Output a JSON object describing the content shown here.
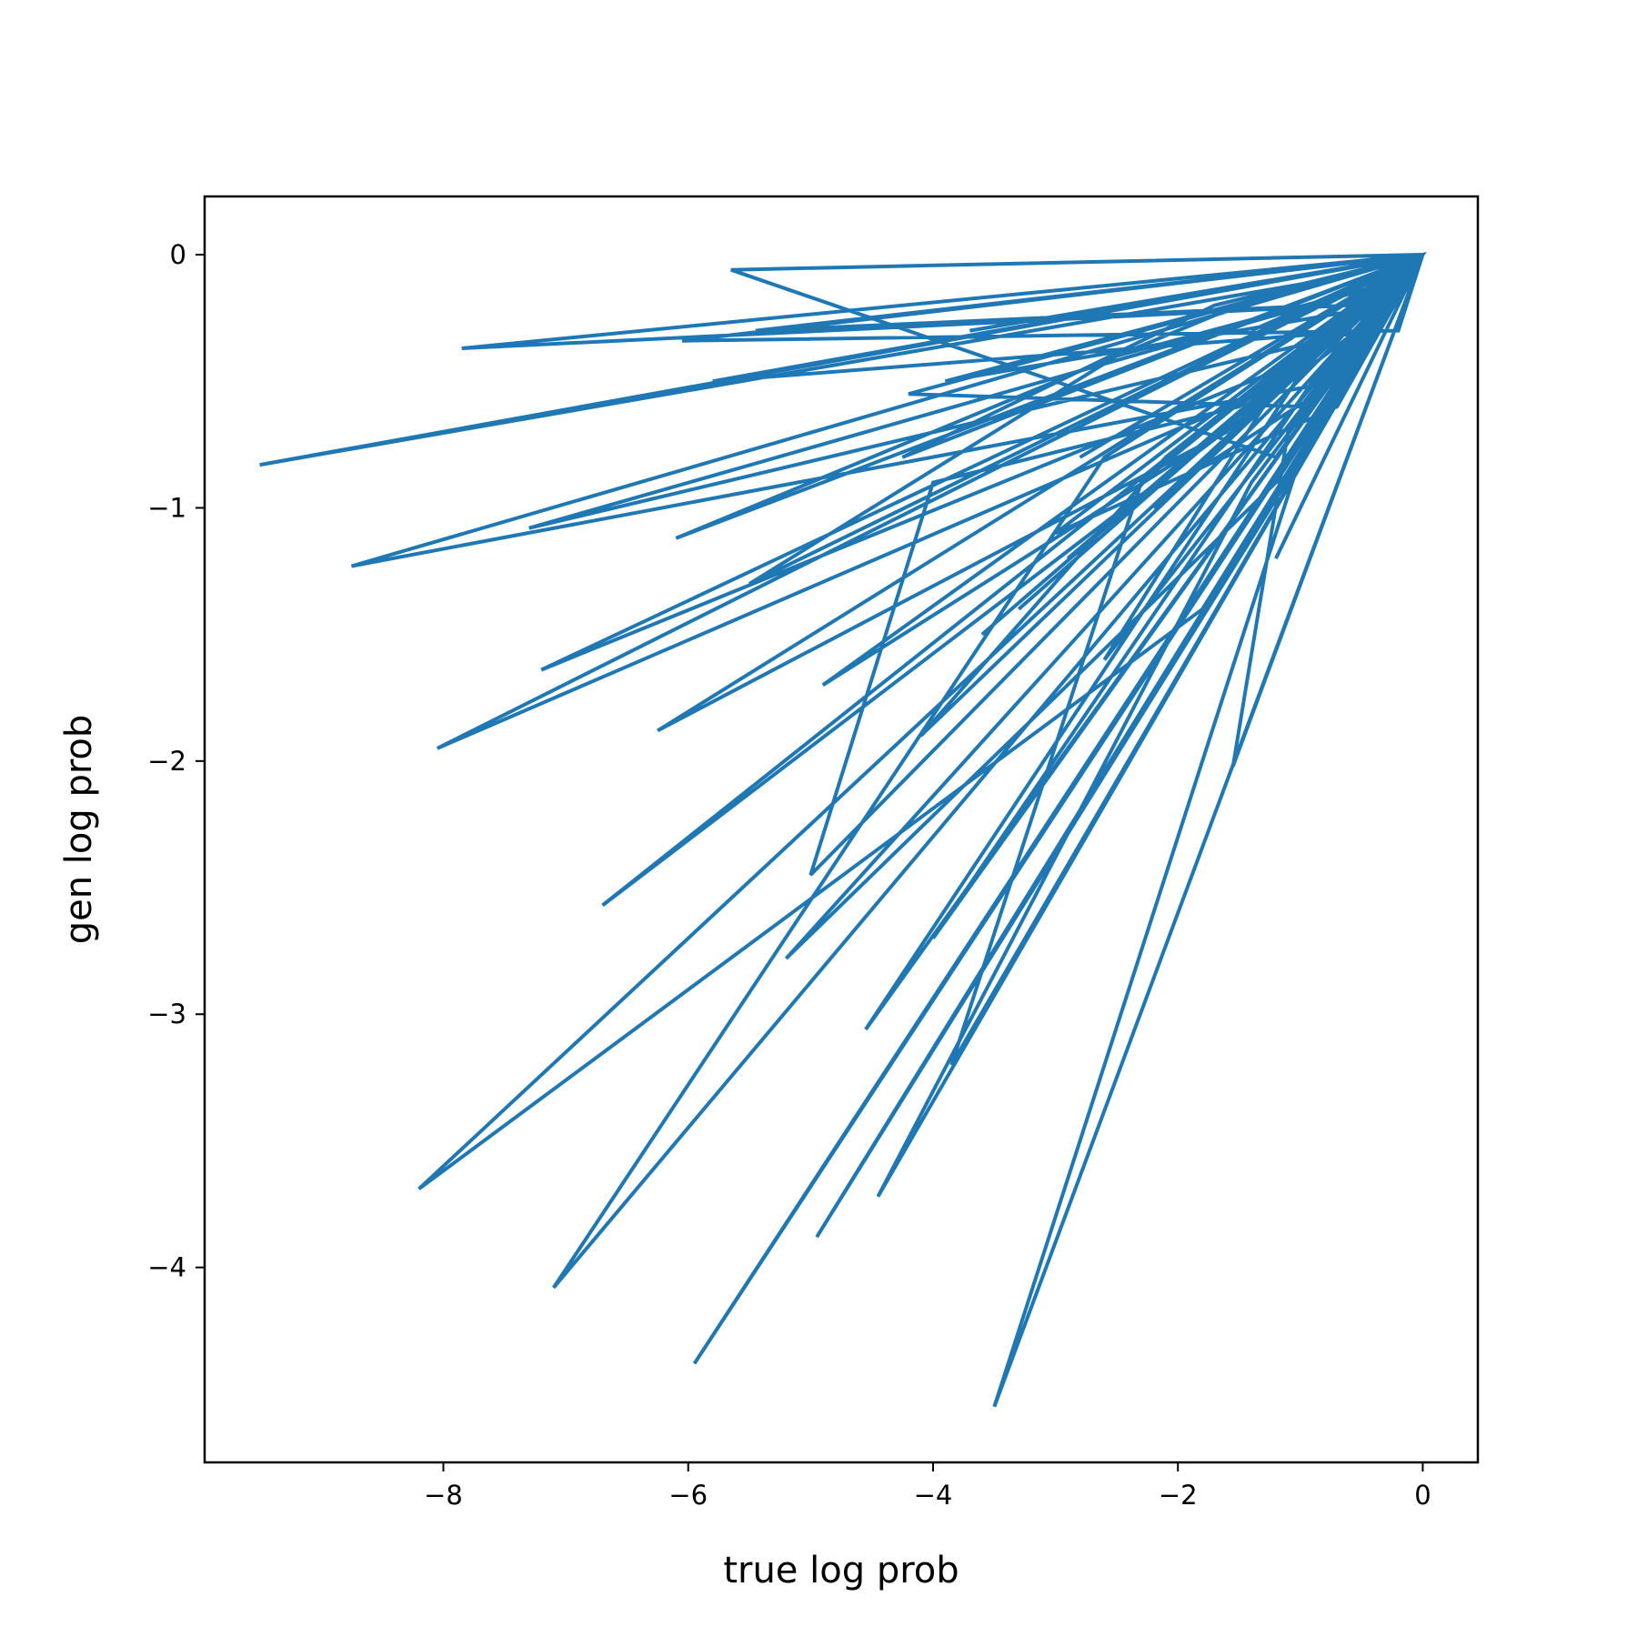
{
  "chart_data": {
    "type": "line",
    "title": "",
    "xlabel": "true log prob",
    "ylabel": "gen log prob",
    "xlim": [
      -9.95,
      0.45
    ],
    "ylim": [
      -4.77,
      0.23
    ],
    "xticks": [
      -8,
      -6,
      -4,
      -2,
      0
    ],
    "yticks": [
      0,
      -1,
      -2,
      -3,
      -4
    ],
    "xtick_labels": [
      "−8",
      "−6",
      "−4",
      "−2",
      "0"
    ],
    "ytick_labels": [
      "0",
      "−1",
      "−2",
      "−3",
      "−4"
    ],
    "grid": false,
    "legend": "none",
    "series": [
      {
        "color": "#1f77b4",
        "x": [
          0,
          -1.4,
          0,
          -2.8,
          0,
          -9.5,
          -0.8,
          0,
          -5.65,
          -1.2,
          0,
          -3.6,
          0,
          -6.1,
          -1.5,
          0,
          -7.85,
          -0.6,
          0,
          -4.2,
          -1.0,
          0,
          -8.75,
          -0.7,
          -2.0,
          0,
          -5.5,
          -2.5,
          -0.2,
          -7.3,
          -0.5,
          0,
          -4.9,
          -1.3,
          0,
          -2.2,
          0,
          -7.2,
          -0.9,
          0,
          -8.05,
          -1.1,
          0,
          -3.9,
          -0.3,
          0,
          -6.25,
          -1.6,
          0,
          -2.9,
          0,
          -5.0,
          -4.0,
          -1.5,
          0,
          -6.7,
          -0.4,
          0,
          -8.2,
          -1.8,
          0,
          -7.1,
          -2.6,
          0,
          -5.95,
          -0.1,
          0,
          -5.2,
          -1.2,
          0,
          -4.55,
          -0.9,
          0,
          -3.85,
          -2.3,
          0,
          -1.55,
          -1.1,
          0,
          -4.95,
          -0.6,
          0,
          -3.0,
          -0.7,
          0,
          -6.05,
          -0.2,
          0,
          -4.45,
          -1.4,
          0,
          -3.3,
          0,
          -5.8,
          -0.5,
          0,
          -4.0,
          -0.9,
          0,
          -3.5,
          -1.0,
          0,
          -5.45,
          -0.8,
          0,
          -4.25,
          -1.7,
          0,
          -3.7,
          0,
          -2.6,
          -1.3,
          0,
          -4.1,
          -2.1,
          0,
          -1.2,
          0,
          -0.9,
          -0.3,
          0
        ],
        "y": [
          0,
          -0.3,
          0,
          -0.8,
          0,
          -0.83,
          -0.1,
          0,
          -0.06,
          -0.8,
          0,
          -1.5,
          0,
          -1.12,
          -0.2,
          0,
          -0.37,
          -0.2,
          0,
          -0.55,
          -0.6,
          0,
          -1.23,
          -0.5,
          -0.9,
          0,
          -1.3,
          -0.4,
          -0.1,
          -1.08,
          -0.3,
          0,
          -1.7,
          -0.6,
          0,
          -1.0,
          0,
          -1.64,
          -0.4,
          0,
          -1.95,
          -0.5,
          0,
          -0.5,
          -0.2,
          0,
          -1.88,
          -0.7,
          0,
          -1.2,
          0,
          -2.45,
          -0.9,
          -0.6,
          0,
          -2.57,
          -0.25,
          0,
          -3.69,
          -1.4,
          0,
          -4.08,
          -0.8,
          0,
          -4.38,
          -0.05,
          0,
          -2.78,
          -0.9,
          0,
          -3.06,
          -0.4,
          0,
          -3.2,
          -0.9,
          0,
          -2.02,
          -0.7,
          0,
          -3.88,
          -0.5,
          0,
          -1.1,
          -0.6,
          0,
          -0.34,
          -0.3,
          0,
          -3.72,
          -0.9,
          0,
          -1.4,
          0,
          -0.5,
          -0.3,
          0,
          -2.7,
          -0.5,
          0,
          -4.55,
          -0.8,
          0,
          -0.3,
          -0.2,
          0,
          -0.8,
          -0.2,
          0,
          -0.3,
          0,
          -1.6,
          -0.6,
          0,
          -1.9,
          -0.8,
          0,
          -1.2,
          0,
          -0.6,
          -0.1,
          0
        ]
      }
    ]
  }
}
